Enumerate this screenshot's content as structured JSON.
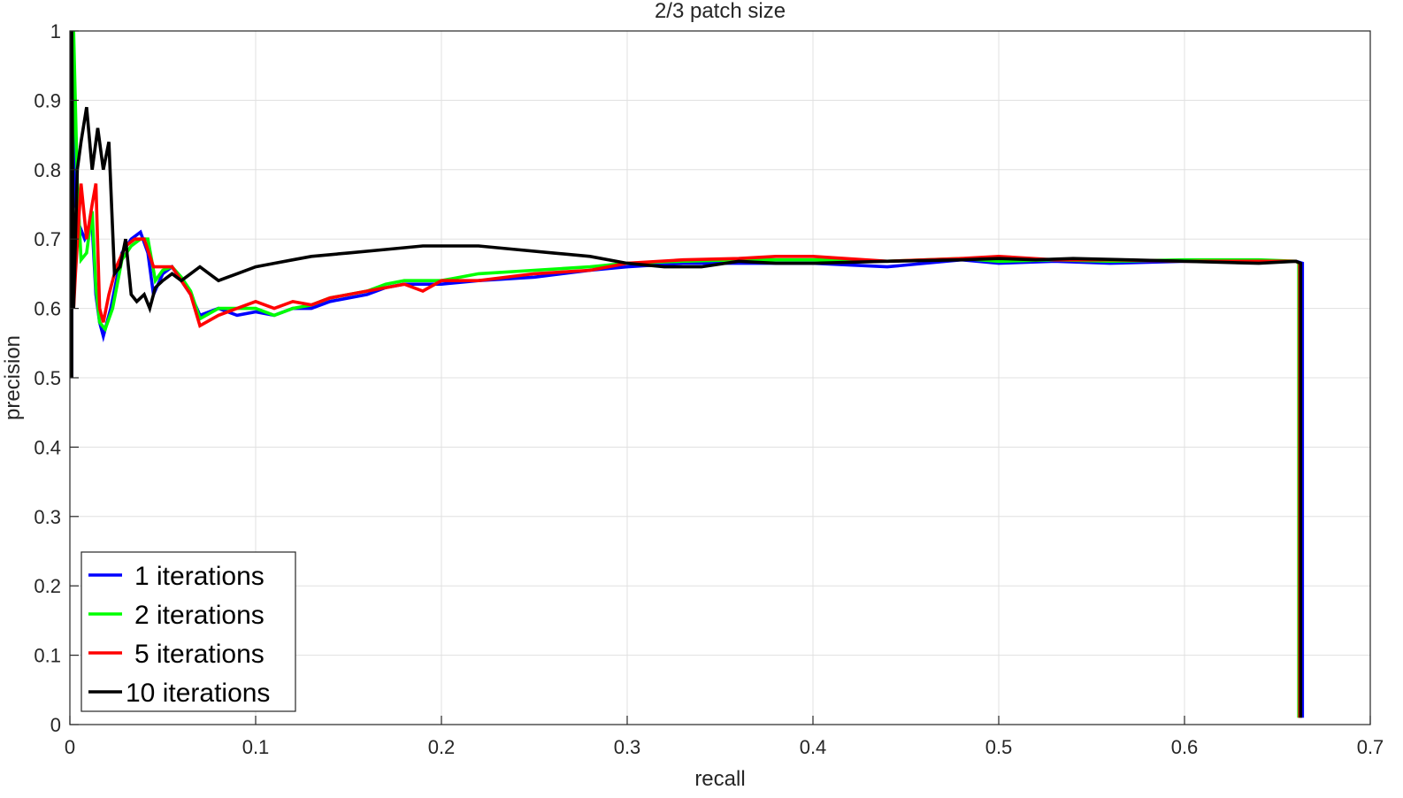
{
  "chart_data": {
    "type": "line",
    "title": "2/3 patch size",
    "xlabel": "recall",
    "ylabel": "precision",
    "xlim": [
      0,
      0.7
    ],
    "ylim": [
      0,
      1
    ],
    "xticks": [
      0,
      0.1,
      0.2,
      0.3,
      0.4,
      0.5,
      0.6,
      0.7
    ],
    "xtick_labels": [
      "0",
      "0.1",
      "0.2",
      "0.3",
      "0.4",
      "0.5",
      "0.6",
      "0.7"
    ],
    "yticks": [
      0,
      0.1,
      0.2,
      0.3,
      0.4,
      0.5,
      0.6,
      0.7,
      0.8,
      0.9,
      1
    ],
    "ytick_labels": [
      "0",
      "0.1",
      "0.2",
      "0.3",
      "0.4",
      "0.5",
      "0.6",
      "0.7",
      "0.8",
      "0.9",
      "1"
    ],
    "grid": true,
    "legend_position": "bottom-left",
    "series": [
      {
        "name": "1 iterations",
        "color": "#0000ff",
        "x": [
          0.001,
          0.001,
          0.003,
          0.005,
          0.008,
          0.012,
          0.014,
          0.016,
          0.018,
          0.022,
          0.028,
          0.033,
          0.038,
          0.042,
          0.045,
          0.05,
          0.055,
          0.06,
          0.065,
          0.07,
          0.08,
          0.09,
          0.1,
          0.11,
          0.12,
          0.13,
          0.14,
          0.15,
          0.16,
          0.17,
          0.18,
          0.2,
          0.22,
          0.25,
          0.28,
          0.3,
          0.33,
          0.36,
          0.4,
          0.44,
          0.48,
          0.5,
          0.53,
          0.56,
          0.6,
          0.64,
          0.66,
          0.6635,
          0.6635
        ],
        "y": [
          0.5,
          1.0,
          0.75,
          0.72,
          0.7,
          0.72,
          0.62,
          0.58,
          0.56,
          0.6,
          0.68,
          0.7,
          0.71,
          0.68,
          0.62,
          0.65,
          0.66,
          0.64,
          0.62,
          0.59,
          0.6,
          0.59,
          0.595,
          0.59,
          0.6,
          0.6,
          0.61,
          0.615,
          0.62,
          0.63,
          0.635,
          0.635,
          0.64,
          0.645,
          0.655,
          0.66,
          0.665,
          0.665,
          0.665,
          0.66,
          0.67,
          0.665,
          0.668,
          0.665,
          0.668,
          0.668,
          0.668,
          0.665,
          0.01
        ]
      },
      {
        "name": "2 iterations",
        "color": "#00ff00",
        "x": [
          0.001,
          0.002,
          0.004,
          0.006,
          0.009,
          0.012,
          0.014,
          0.016,
          0.019,
          0.023,
          0.028,
          0.033,
          0.038,
          0.042,
          0.046,
          0.05,
          0.055,
          0.06,
          0.065,
          0.07,
          0.08,
          0.09,
          0.1,
          0.11,
          0.12,
          0.13,
          0.14,
          0.15,
          0.16,
          0.17,
          0.18,
          0.2,
          0.22,
          0.25,
          0.28,
          0.3,
          0.33,
          0.36,
          0.4,
          0.44,
          0.48,
          0.5,
          0.53,
          0.56,
          0.6,
          0.64,
          0.66,
          0.6615,
          0.6615
        ],
        "y": [
          0.6,
          1.0,
          0.78,
          0.67,
          0.68,
          0.74,
          0.63,
          0.58,
          0.57,
          0.6,
          0.67,
          0.69,
          0.7,
          0.7,
          0.64,
          0.655,
          0.66,
          0.645,
          0.625,
          0.585,
          0.6,
          0.6,
          0.6,
          0.59,
          0.6,
          0.605,
          0.615,
          0.62,
          0.625,
          0.635,
          0.64,
          0.64,
          0.65,
          0.655,
          0.66,
          0.665,
          0.668,
          0.67,
          0.67,
          0.668,
          0.672,
          0.668,
          0.67,
          0.668,
          0.67,
          0.67,
          0.668,
          0.665,
          0.01
        ]
      },
      {
        "name": "5 iterations",
        "color": "#ff0000",
        "x": [
          0.002,
          0.003,
          0.006,
          0.009,
          0.012,
          0.014,
          0.016,
          0.018,
          0.021,
          0.025,
          0.03,
          0.035,
          0.04,
          0.045,
          0.05,
          0.055,
          0.06,
          0.065,
          0.07,
          0.08,
          0.09,
          0.1,
          0.11,
          0.12,
          0.13,
          0.14,
          0.15,
          0.16,
          0.17,
          0.18,
          0.19,
          0.2,
          0.22,
          0.25,
          0.28,
          0.3,
          0.33,
          0.36,
          0.38,
          0.4,
          0.44,
          0.48,
          0.5,
          0.53,
          0.56,
          0.6,
          0.64,
          0.66,
          0.662,
          0.662
        ],
        "y": [
          0.6,
          0.65,
          0.78,
          0.7,
          0.75,
          0.78,
          0.6,
          0.58,
          0.62,
          0.66,
          0.69,
          0.7,
          0.7,
          0.66,
          0.66,
          0.66,
          0.64,
          0.62,
          0.575,
          0.59,
          0.6,
          0.61,
          0.6,
          0.61,
          0.605,
          0.615,
          0.62,
          0.625,
          0.63,
          0.635,
          0.625,
          0.64,
          0.64,
          0.65,
          0.655,
          0.665,
          0.67,
          0.672,
          0.675,
          0.675,
          0.668,
          0.672,
          0.675,
          0.67,
          0.67,
          0.668,
          0.668,
          0.668,
          0.665,
          0.01
        ]
      },
      {
        "name": "10 iterations",
        "color": "#000000",
        "x": [
          0.001,
          0.001,
          0.002,
          0.004,
          0.006,
          0.009,
          0.012,
          0.015,
          0.018,
          0.021,
          0.024,
          0.027,
          0.03,
          0.033,
          0.036,
          0.04,
          0.043,
          0.046,
          0.05,
          0.055,
          0.06,
          0.07,
          0.08,
          0.09,
          0.1,
          0.11,
          0.12,
          0.13,
          0.15,
          0.17,
          0.19,
          0.2,
          0.22,
          0.24,
          0.26,
          0.28,
          0.3,
          0.32,
          0.34,
          0.36,
          0.38,
          0.4,
          0.44,
          0.48,
          0.5,
          0.52,
          0.54,
          0.57,
          0.6,
          0.64,
          0.66,
          0.6625,
          0.6625
        ],
        "y": [
          0.5,
          1.0,
          0.6,
          0.8,
          0.84,
          0.89,
          0.8,
          0.86,
          0.8,
          0.84,
          0.65,
          0.66,
          0.7,
          0.62,
          0.61,
          0.62,
          0.6,
          0.63,
          0.64,
          0.65,
          0.64,
          0.66,
          0.64,
          0.65,
          0.66,
          0.665,
          0.67,
          0.675,
          0.68,
          0.685,
          0.69,
          0.69,
          0.69,
          0.685,
          0.68,
          0.675,
          0.665,
          0.66,
          0.66,
          0.668,
          0.665,
          0.665,
          0.668,
          0.67,
          0.672,
          0.67,
          0.672,
          0.67,
          0.668,
          0.665,
          0.668,
          0.665,
          0.01
        ]
      }
    ]
  }
}
